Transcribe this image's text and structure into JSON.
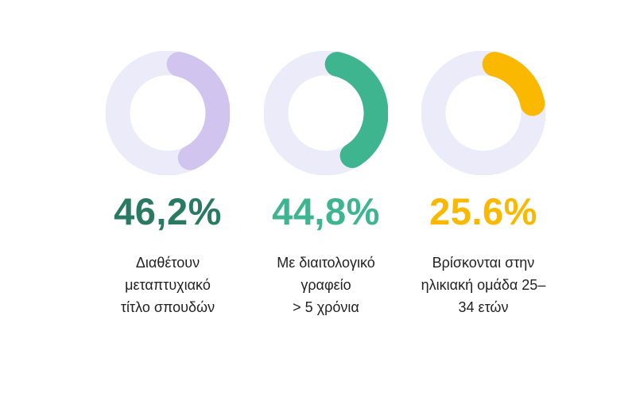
{
  "chart_data": {
    "type": "donut",
    "track_color": "#ebebfa",
    "items": [
      {
        "value": 46.2,
        "value_label": "46,2%",
        "arc_color": "#d1c4ee",
        "text_color": "#2a7a62",
        "label_lines": [
          "Διαθέτουν",
          "μεταπτυχιακό",
          "τίτλο σπουδών"
        ]
      },
      {
        "value": 44.8,
        "value_label": "44,8%",
        "arc_color": "#3eb58f",
        "text_color": "#3eb58f",
        "label_lines": [
          "Με διαιτολογικό",
          "γραφείο",
          "> 5 χρόνια"
        ]
      },
      {
        "value": 25.6,
        "value_label": "25.6%",
        "arc_color": "#fbb800",
        "text_color": "#fbb800",
        "label_lines": [
          "Βρίσκονται στην",
          "ηλικιακή ομάδα 25–",
          "34 ετών"
        ]
      }
    ]
  }
}
